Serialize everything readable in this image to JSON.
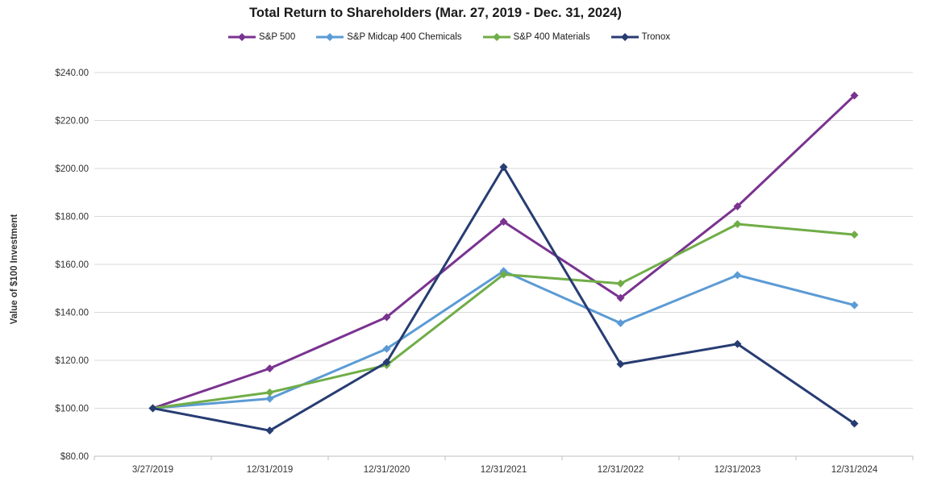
{
  "chart_data": {
    "type": "line",
    "title": "Total Return to Shareholders (Mar. 27, 2019 - Dec. 31, 2024)",
    "ylabel": "Value of $100 Investment",
    "xlabel": "",
    "categories": [
      "3/27/2019",
      "12/31/2019",
      "12/31/2020",
      "12/31/2021",
      "12/31/2022",
      "12/31/2023",
      "12/31/2024"
    ],
    "ylim": [
      80,
      240
    ],
    "ytick_step": 20,
    "ytick_prefix": "$",
    "ytick_decimals": 2,
    "grid": true,
    "legend_position": "top",
    "marker": "diamond",
    "colors": {
      "grid": "#d9d9d9",
      "axis": "#bfbfbf",
      "text": "#333333"
    },
    "series": [
      {
        "name": "S&P 500",
        "color": "#7A3390",
        "values": [
          100.0,
          116.6,
          138.0,
          177.8,
          146.0,
          184.2,
          230.4
        ]
      },
      {
        "name": "S&P Midcap 400 Chemicals",
        "color": "#5B9BD5",
        "values": [
          100.0,
          104.0,
          124.8,
          157.2,
          135.5,
          155.5,
          143.0
        ]
      },
      {
        "name": "S&P 400 Materials",
        "color": "#70AD47",
        "values": [
          100.0,
          106.6,
          118.0,
          155.8,
          152.0,
          176.8,
          172.4
        ]
      },
      {
        "name": "Tronox",
        "color": "#273C72",
        "values": [
          100.0,
          90.7,
          119.2,
          200.6,
          118.4,
          126.8,
          93.6
        ]
      }
    ]
  }
}
